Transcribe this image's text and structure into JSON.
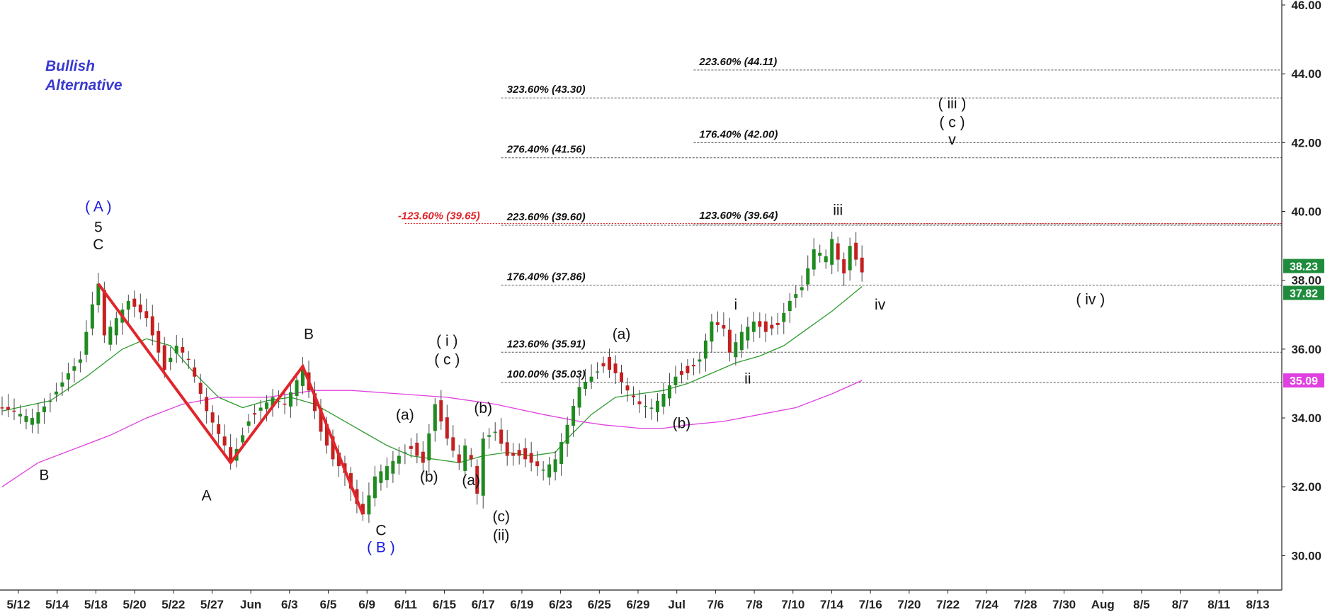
{
  "chart_data": {
    "type": "candlestick",
    "title": "",
    "xlabel": "",
    "ylabel": "",
    "ylim": [
      29.0,
      46.0
    ],
    "y_ticks": [
      "30.00",
      "32.00",
      "34.00",
      "36.00",
      "38.00",
      "40.00",
      "42.00",
      "44.00",
      "46.00"
    ],
    "x_ticks": [
      "5/12",
      "5/14",
      "5/18",
      "5/20",
      "5/22",
      "5/27",
      "Jun",
      "6/3",
      "6/5",
      "6/9",
      "6/11",
      "6/15",
      "6/17",
      "6/19",
      "6/23",
      "6/25",
      "6/29",
      "Jul",
      "7/6",
      "7/8",
      "7/10",
      "7/14",
      "7/16",
      "7/20",
      "7/22",
      "7/24",
      "7/28",
      "7/30",
      "Aug",
      "8/5",
      "8/7",
      "8/11",
      "8/13"
    ],
    "annotation_note": [
      "Bullish",
      "Alternative"
    ],
    "price_path": [
      [
        0,
        34.3
      ],
      [
        5,
        34.0
      ],
      [
        8,
        34.5
      ],
      [
        11,
        35.3
      ],
      [
        13,
        35.7
      ],
      [
        15,
        37.3
      ],
      [
        16,
        37.9
      ],
      [
        17,
        36.4
      ],
      [
        19,
        36.9
      ],
      [
        21,
        37.4
      ],
      [
        24,
        36.9
      ],
      [
        27,
        35.4
      ],
      [
        29,
        36.1
      ],
      [
        31,
        35.7
      ],
      [
        34,
        34.2
      ],
      [
        37,
        33.2
      ],
      [
        38,
        32.7
      ],
      [
        41,
        33.9
      ],
      [
        43,
        34.3
      ],
      [
        45,
        34.6
      ],
      [
        47,
        34.4
      ],
      [
        49,
        35.1
      ],
      [
        50,
        35.5
      ],
      [
        51,
        34.8
      ],
      [
        53,
        33.6
      ],
      [
        55,
        32.8
      ],
      [
        57,
        32.4
      ],
      [
        59,
        31.5
      ],
      [
        60,
        31.2
      ],
      [
        62,
        32.3
      ],
      [
        64,
        32.6
      ],
      [
        66,
        32.9
      ],
      [
        68,
        33.1
      ],
      [
        70,
        32.7
      ],
      [
        72,
        34.4
      ],
      [
        74,
        33.4
      ],
      [
        76,
        32.7
      ],
      [
        77,
        33.2
      ],
      [
        78,
        32.8
      ],
      [
        79,
        31.8
      ],
      [
        80,
        33.4
      ],
      [
        82,
        33.6
      ],
      [
        84,
        32.9
      ],
      [
        86,
        32.9
      ],
      [
        88,
        32.7
      ],
      [
        90,
        32.5
      ],
      [
        92,
        32.8
      ],
      [
        94,
        33.8
      ],
      [
        96,
        34.9
      ],
      [
        98,
        35.2
      ],
      [
        100,
        35.5
      ],
      [
        102,
        35.3
      ],
      [
        104,
        34.8
      ],
      [
        106,
        34.4
      ],
      [
        108,
        34.3
      ],
      [
        110,
        34.7
      ],
      [
        112,
        35.2
      ],
      [
        114,
        35.3
      ],
      [
        116,
        35.7
      ],
      [
        118,
        36.8
      ],
      [
        120,
        36.6
      ],
      [
        121,
        35.9
      ],
      [
        123,
        36.5
      ],
      [
        125,
        36.8
      ],
      [
        127,
        36.5
      ],
      [
        129,
        36.7
      ],
      [
        131,
        37.4
      ],
      [
        133,
        37.8
      ],
      [
        135,
        38.9
      ],
      [
        137,
        38.7
      ],
      [
        138,
        39.2
      ],
      [
        139,
        38.6
      ],
      [
        140,
        38.2
      ],
      [
        141,
        39.0
      ],
      [
        142,
        38.6
      ],
      [
        143,
        38.23
      ]
    ],
    "series": [
      {
        "name": "",
        "color": "#2e9a2e",
        "points": [
          [
            0,
            34.2
          ],
          [
            8,
            34.5
          ],
          [
            14,
            35.2
          ],
          [
            20,
            36.0
          ],
          [
            24,
            36.3
          ],
          [
            28,
            36.1
          ],
          [
            32,
            35.3
          ],
          [
            36,
            34.6
          ],
          [
            40,
            34.3
          ],
          [
            44,
            34.5
          ],
          [
            48,
            34.6
          ],
          [
            52,
            34.4
          ],
          [
            56,
            34.0
          ],
          [
            60,
            33.6
          ],
          [
            64,
            33.2
          ],
          [
            68,
            32.9
          ],
          [
            72,
            32.8
          ],
          [
            76,
            32.7
          ],
          [
            80,
            32.9
          ],
          [
            84,
            33.0
          ],
          [
            88,
            32.9
          ],
          [
            92,
            33.0
          ],
          [
            94,
            33.4
          ],
          [
            98,
            34.1
          ],
          [
            102,
            34.6
          ],
          [
            106,
            34.7
          ],
          [
            110,
            34.8
          ],
          [
            114,
            35.0
          ],
          [
            118,
            35.3
          ],
          [
            122,
            35.6
          ],
          [
            126,
            35.8
          ],
          [
            130,
            36.1
          ],
          [
            134,
            36.6
          ],
          [
            138,
            37.1
          ],
          [
            143,
            37.82
          ]
        ]
      },
      {
        "name": "",
        "color": "#e040e0",
        "points": [
          [
            0,
            32.0
          ],
          [
            6,
            32.7
          ],
          [
            12,
            33.1
          ],
          [
            18,
            33.5
          ],
          [
            24,
            34.0
          ],
          [
            30,
            34.4
          ],
          [
            36,
            34.6
          ],
          [
            44,
            34.6
          ],
          [
            52,
            34.8
          ],
          [
            58,
            34.8
          ],
          [
            66,
            34.7
          ],
          [
            74,
            34.6
          ],
          [
            82,
            34.4
          ],
          [
            90,
            34.1
          ],
          [
            96,
            33.9
          ],
          [
            100,
            33.8
          ],
          [
            106,
            33.7
          ],
          [
            110,
            33.7
          ],
          [
            114,
            33.8
          ],
          [
            120,
            33.9
          ],
          [
            126,
            34.1
          ],
          [
            132,
            34.3
          ],
          [
            138,
            34.7
          ],
          [
            143,
            35.09
          ]
        ]
      }
    ],
    "price_tags": [
      {
        "value": "38.23",
        "level": 38.23,
        "color": "#1e8c3c"
      },
      {
        "value": "37.82",
        "level": 37.82,
        "color": "#1e8c3c"
      },
      {
        "value": "35.09",
        "level": 35.09,
        "color": "#e040e0"
      }
    ],
    "fib_levels": [
      {
        "label": "223.60% (44.11)",
        "level": 44.11,
        "x_from": 115
      },
      {
        "label": "323.60% (43.30)",
        "level": 43.3,
        "x_from": 83
      },
      {
        "label": "176.40% (42.00)",
        "level": 42.0,
        "x_from": 115
      },
      {
        "label": "276.40% (41.56)",
        "level": 41.56,
        "x_from": 83
      },
      {
        "label": "223.60% (39.60)",
        "level": 39.6,
        "x_from": 83,
        "text_x": 83
      },
      {
        "label": "123.60% (39.64)",
        "level": 39.64,
        "x_from": 115
      },
      {
        "label": "176.40% (37.86)",
        "level": 37.86,
        "x_from": 83
      },
      {
        "label": "123.60% (35.91)",
        "level": 35.91,
        "x_from": 83
      },
      {
        "label": "100.00% (35.03)",
        "level": 35.03,
        "x_from": 83
      }
    ],
    "fib_red": {
      "label": "-123.60% (39.65)",
      "level": 39.65,
      "x_from": 67
    },
    "red_wave_path": [
      [
        16,
        37.9
      ],
      [
        38,
        32.7
      ],
      [
        50,
        35.5
      ],
      [
        60,
        31.2
      ]
    ],
    "wave_labels": [
      {
        "text": "( A )",
        "x": 16,
        "y": 40.0,
        "color": "blue"
      },
      {
        "text": "5",
        "x": 16,
        "y": 39.4,
        "color": "black"
      },
      {
        "text": "C",
        "x": 16,
        "y": 38.9,
        "color": "black"
      },
      {
        "text": "B",
        "x": 7,
        "y": 32.2,
        "color": "black"
      },
      {
        "text": "A",
        "x": 34,
        "y": 31.6,
        "color": "black"
      },
      {
        "text": "B",
        "x": 51,
        "y": 36.3,
        "color": "black"
      },
      {
        "text": "C",
        "x": 63,
        "y": 30.6,
        "color": "black"
      },
      {
        "text": "( B )",
        "x": 63,
        "y": 30.1,
        "color": "blue"
      },
      {
        "text": "( i )",
        "x": 74,
        "y": 36.1,
        "color": "black"
      },
      {
        "text": "( c )",
        "x": 74,
        "y": 35.55,
        "color": "black"
      },
      {
        "text": "(a)",
        "x": 67,
        "y": 33.95,
        "color": "black"
      },
      {
        "text": "(b)",
        "x": 71,
        "y": 32.15,
        "color": "black"
      },
      {
        "text": "(b)",
        "x": 80,
        "y": 34.15,
        "color": "black"
      },
      {
        "text": "(a)",
        "x": 78,
        "y": 32.05,
        "color": "black"
      },
      {
        "text": "(c)",
        "x": 83,
        "y": 31.0,
        "color": "black"
      },
      {
        "text": "(ii)",
        "x": 83,
        "y": 30.45,
        "color": "black"
      },
      {
        "text": "(a)",
        "x": 103,
        "y": 36.3,
        "color": "black"
      },
      {
        "text": "(b)",
        "x": 113,
        "y": 33.7,
        "color": "black"
      },
      {
        "text": "i",
        "x": 122,
        "y": 37.15,
        "color": "black"
      },
      {
        "text": "ii",
        "x": 124,
        "y": 35.0,
        "color": "black"
      },
      {
        "text": "iii",
        "x": 139,
        "y": 39.9,
        "color": "black"
      },
      {
        "text": "iv",
        "x": 146,
        "y": 37.15,
        "color": "black"
      },
      {
        "text": "( iii )",
        "x": 158,
        "y": 43.0,
        "color": "black"
      },
      {
        "text": "( c )",
        "x": 158,
        "y": 42.45,
        "color": "black"
      },
      {
        "text": "v",
        "x": 158,
        "y": 41.95,
        "color": "black"
      },
      {
        "text": "( iv )",
        "x": 181,
        "y": 37.3,
        "color": "black"
      }
    ],
    "grid": false,
    "legend": "none"
  }
}
